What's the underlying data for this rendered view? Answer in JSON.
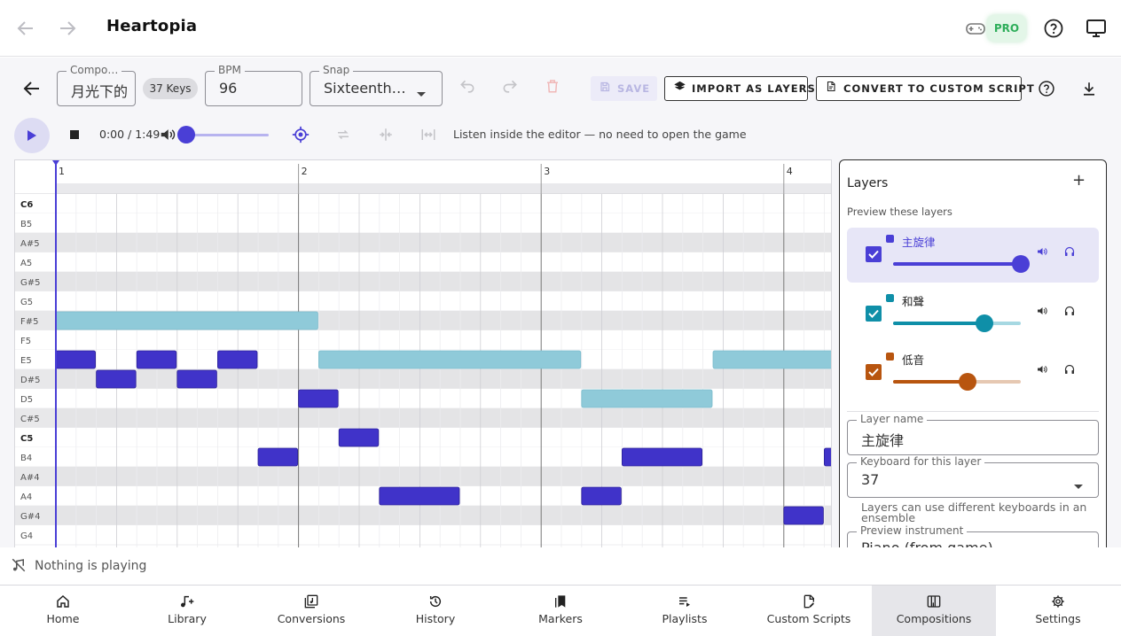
{
  "app": {
    "title": "Heartopia",
    "pro_label": "PRO"
  },
  "toolbar": {
    "composition_label": "Compo…",
    "composition_value": "月光下的",
    "keys_chip": "37 Keys",
    "bpm_label": "BPM",
    "bpm_value": "96",
    "snap_label": "Snap",
    "snap_value": "Sixteenth…",
    "save_label": "SAVE",
    "import_label": "IMPORT AS LAYERS",
    "convert_label": "CONVERT TO CUSTOM SCRIPT"
  },
  "player": {
    "time": "0:00 / 1:49",
    "progress": 0,
    "hint": "Listen inside the editor — no need to open the game"
  },
  "roll": {
    "measures": [
      "1",
      "2",
      "3",
      "4"
    ],
    "rows": [
      "C6",
      "B5",
      "A#5",
      "A5",
      "G#5",
      "G5",
      "F#5",
      "F5",
      "E5",
      "D#5",
      "D5",
      "C#5",
      "C5",
      "B4",
      "A#4",
      "A4",
      "G#4",
      "G4"
    ],
    "notes_melody": [
      {
        "pitch": "E5",
        "start": 0,
        "len": 2
      },
      {
        "pitch": "D#5",
        "start": 2,
        "len": 2
      },
      {
        "pitch": "E5",
        "start": 4,
        "len": 2
      },
      {
        "pitch": "D#5",
        "start": 6,
        "len": 2
      },
      {
        "pitch": "E5",
        "start": 8,
        "len": 2
      },
      {
        "pitch": "B4",
        "start": 10,
        "len": 2
      },
      {
        "pitch": "D5",
        "start": 12,
        "len": 2
      },
      {
        "pitch": "C5",
        "start": 14,
        "len": 2
      },
      {
        "pitch": "A4",
        "start": 16,
        "len": 4
      },
      {
        "pitch": "A4",
        "start": 26,
        "len": 2
      },
      {
        "pitch": "B4",
        "start": 28,
        "len": 4
      },
      {
        "pitch": "G#4",
        "start": 36,
        "len": 2
      },
      {
        "pitch": "B4",
        "start": 38,
        "len": 1
      }
    ],
    "notes_harmony": [
      {
        "pitch": "F#5",
        "start": 0,
        "len": 13
      },
      {
        "pitch": "E5",
        "start": 13,
        "len": 13
      },
      {
        "pitch": "D5",
        "start": 26,
        "len": 6.5
      },
      {
        "pitch": "E5",
        "start": 32.5,
        "len": 6
      }
    ]
  },
  "layers": {
    "title": "Layers",
    "subtitle": "Preview these layers",
    "items": [
      {
        "name": "主旋律",
        "color": "#4a3fd6",
        "track": "#b7b3ef",
        "volume": 1.0,
        "active": true
      },
      {
        "name": "和聲",
        "color": "#0f8fa8",
        "track": "#a6d8e2",
        "volume": 0.7,
        "active": false
      },
      {
        "name": "低音",
        "color": "#b8550f",
        "track": "#e6c8b2",
        "volume": 0.58,
        "active": false
      }
    ],
    "layer_name_label": "Layer name",
    "layer_name_value": "主旋律",
    "keyboard_label": "Keyboard for this layer",
    "keyboard_value": "37",
    "keyboard_note": "Layers can use different keyboards in an ensemble",
    "instrument_label": "Preview instrument",
    "instrument_value": "Piano (from game)"
  },
  "nowplaying": {
    "text": "Nothing is playing"
  },
  "nav": [
    {
      "label": "Home",
      "icon": "home-icon"
    },
    {
      "label": "Library",
      "icon": "music-add-icon"
    },
    {
      "label": "Conversions",
      "icon": "conversions-icon"
    },
    {
      "label": "History",
      "icon": "history-icon"
    },
    {
      "label": "Markers",
      "icon": "markers-icon"
    },
    {
      "label": "Playlists",
      "icon": "playlist-icon"
    },
    {
      "label": "Custom Scripts",
      "icon": "script-icon"
    },
    {
      "label": "Compositions",
      "icon": "compositions-icon",
      "active": true
    },
    {
      "label": "Settings",
      "icon": "settings-icon"
    }
  ]
}
